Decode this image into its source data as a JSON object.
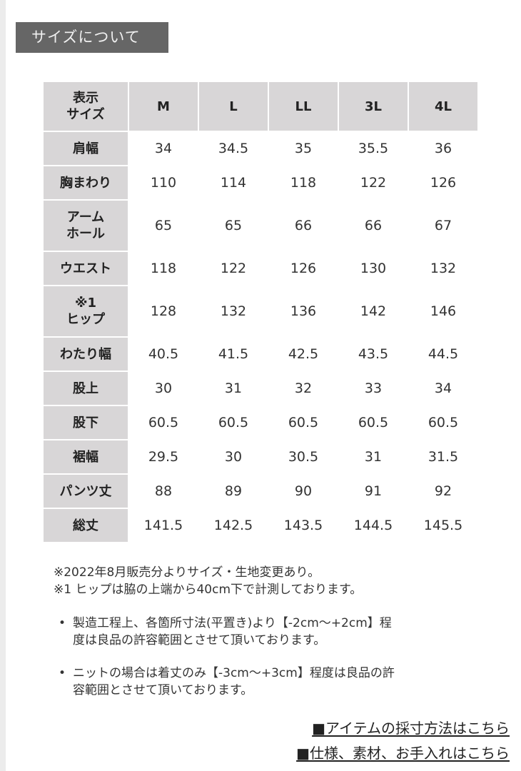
{
  "title": "サイズについて",
  "table": {
    "corner": [
      "表示",
      "サイズ"
    ],
    "sizes": [
      "M",
      "L",
      "LL",
      "3L",
      "4L"
    ],
    "rows": [
      {
        "label": [
          "肩幅"
        ],
        "values": [
          "34",
          "34.5",
          "35",
          "35.5",
          "36"
        ]
      },
      {
        "label": [
          "胸まわり"
        ],
        "values": [
          "110",
          "114",
          "118",
          "122",
          "126"
        ]
      },
      {
        "label": [
          "アーム",
          "ホール"
        ],
        "values": [
          "65",
          "65",
          "66",
          "66",
          "67"
        ]
      },
      {
        "label": [
          "ウエスト"
        ],
        "values": [
          "118",
          "122",
          "126",
          "130",
          "132"
        ]
      },
      {
        "label": [
          "※1",
          "ヒップ"
        ],
        "values": [
          "128",
          "132",
          "136",
          "142",
          "146"
        ]
      },
      {
        "label": [
          "わたり幅"
        ],
        "values": [
          "40.5",
          "41.5",
          "42.5",
          "43.5",
          "44.5"
        ]
      },
      {
        "label": [
          "股上"
        ],
        "values": [
          "30",
          "31",
          "32",
          "33",
          "34"
        ]
      },
      {
        "label": [
          "股下"
        ],
        "values": [
          "60.5",
          "60.5",
          "60.5",
          "60.5",
          "60.5"
        ]
      },
      {
        "label": [
          "裾幅"
        ],
        "values": [
          "29.5",
          "30",
          "30.5",
          "31",
          "31.5"
        ]
      },
      {
        "label": [
          "パンツ丈"
        ],
        "values": [
          "88",
          "89",
          "90",
          "91",
          "92"
        ]
      },
      {
        "label": [
          "総丈"
        ],
        "values": [
          "141.5",
          "142.5",
          "143.5",
          "144.5",
          "145.5"
        ]
      }
    ]
  },
  "notes": [
    "※2022年8月販売分よりサイズ・生地変更あり。",
    "※1 ヒップは脇の上端から40cm下で計測しております。"
  ],
  "bullets": [
    [
      "製造工程上、各箇所寸法(平置き)より【-2cm～+2cm】程",
      "度は良品の許容範囲とさせて頂いております。"
    ],
    [
      "ニットの場合は着丈のみ【-3cm～+3cm】程度は良品の許",
      "容範囲とさせて頂いております。"
    ]
  ],
  "links": [
    "■アイテムの採寸方法はこちら",
    "■仕様、素材、お手入れはこちら"
  ]
}
